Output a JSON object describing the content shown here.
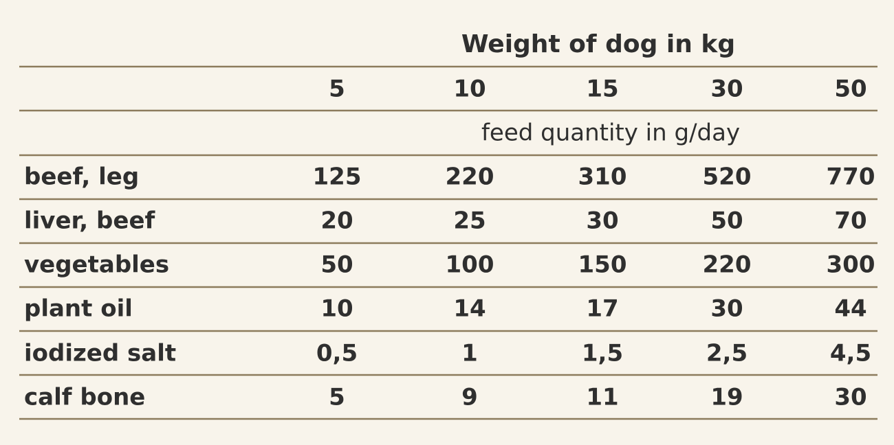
{
  "header": {
    "title": "Weight of dog in kg",
    "subtitle": "feed quantity in g/day"
  },
  "table": {
    "columns": [
      "5",
      "10",
      "15",
      "30",
      "50"
    ],
    "rows": [
      [
        "beef, leg",
        "125",
        "220",
        "310",
        "520",
        "770"
      ],
      [
        "liver, beef",
        "20",
        "25",
        "30",
        "50",
        "70"
      ],
      [
        "vegetables",
        "50",
        "100",
        "150",
        "220",
        "300"
      ],
      [
        "plant oil",
        "10",
        "14",
        "17",
        "30",
        "44"
      ],
      [
        "iodized salt",
        "0,5",
        "1",
        "1,5",
        "2,5",
        "4,5"
      ],
      [
        "calf bone",
        "5",
        "9",
        "11",
        "19",
        "30"
      ]
    ]
  }
}
